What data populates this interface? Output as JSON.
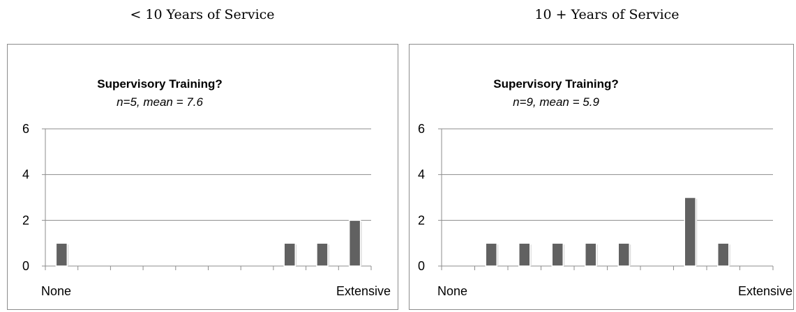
{
  "groups": [
    {
      "heading": "< 10 Years of Service"
    },
    {
      "heading": "10 + Years of Service"
    }
  ],
  "chart_data": [
    {
      "type": "bar",
      "title": "Supervisory Training?",
      "subtitle": "n=5, mean = 7.6",
      "categories": [
        1,
        2,
        3,
        4,
        5,
        6,
        7,
        8,
        9,
        10
      ],
      "values": [
        1,
        0,
        0,
        0,
        0,
        0,
        0,
        1,
        1,
        2
      ],
      "x_tick_labels": {
        "first": "None",
        "last": "Extensive"
      },
      "yticks": [
        0,
        2,
        4,
        6
      ],
      "ylim": [
        0,
        6
      ],
      "grid": true,
      "bar_color": "#616161"
    },
    {
      "type": "bar",
      "title": "Supervisory Training?",
      "subtitle": "n=9, mean = 5.9",
      "categories": [
        1,
        2,
        3,
        4,
        5,
        6,
        7,
        8,
        9,
        10
      ],
      "values": [
        0,
        1,
        1,
        1,
        1,
        1,
        0,
        3,
        1,
        0
      ],
      "x_tick_labels": {
        "first": "None",
        "last": "Extensive"
      },
      "yticks": [
        0,
        2,
        4,
        6
      ],
      "ylim": [
        0,
        6
      ],
      "grid": true,
      "bar_color": "#616161"
    }
  ]
}
